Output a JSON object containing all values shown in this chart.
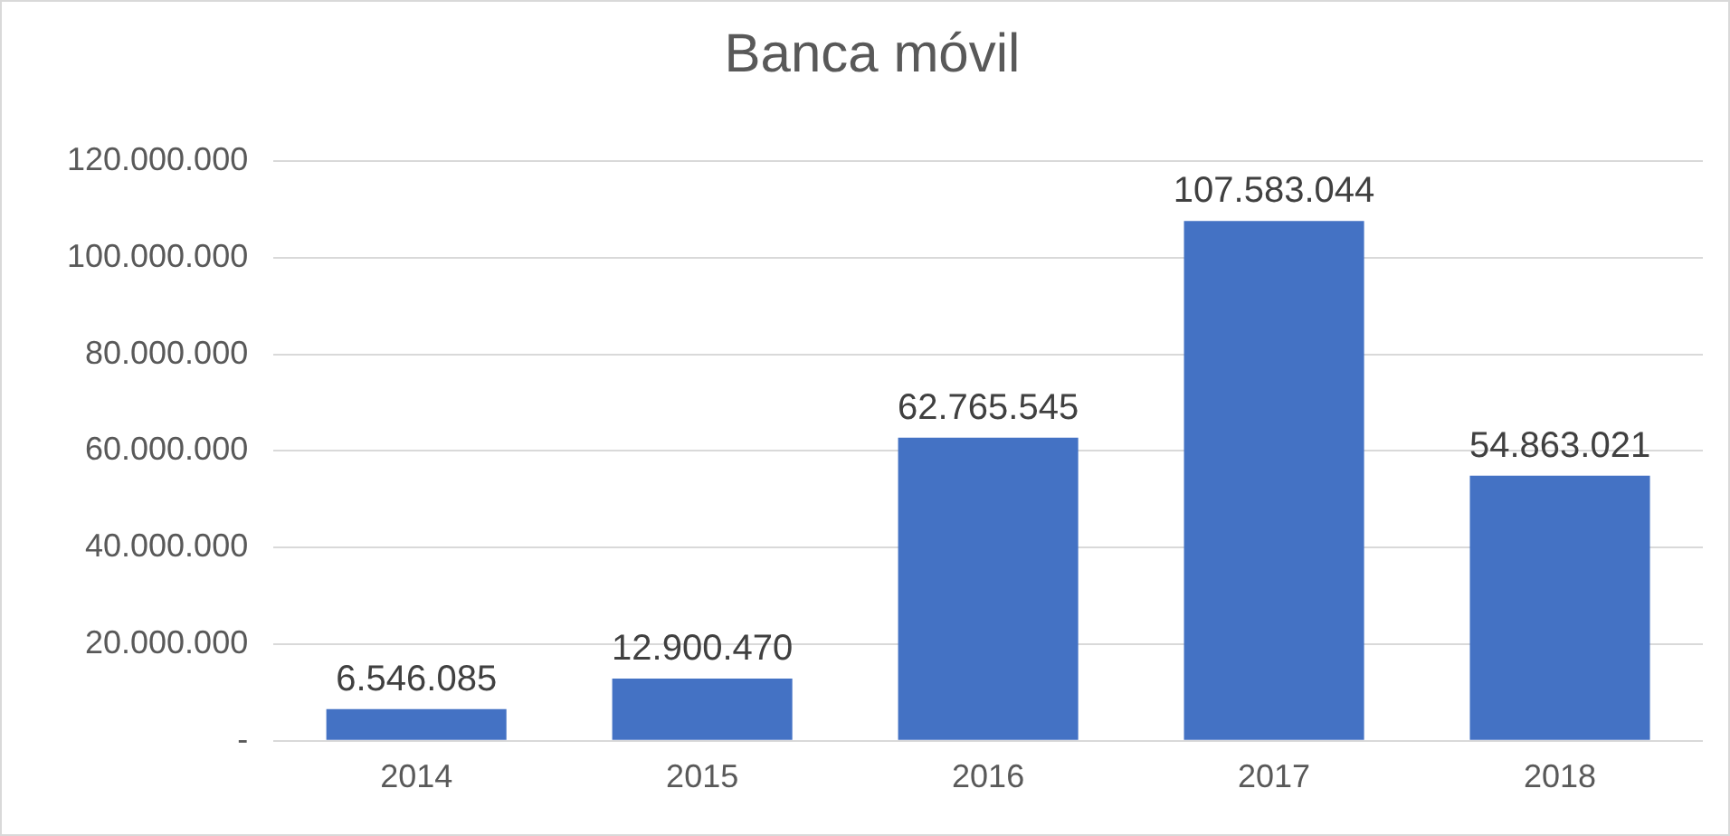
{
  "chart_data": {
    "type": "bar",
    "title": "Banca móvil",
    "categories": [
      "2014",
      "2015",
      "2016",
      "2017",
      "2018"
    ],
    "values": [
      6546085,
      12900470,
      62765545,
      107583044,
      54863021
    ],
    "value_labels": [
      "6.546.085",
      "12.900.470",
      "62.765.545",
      "107.583.044",
      "54.863.021"
    ],
    "color": "#4472c4",
    "ylim": [
      0,
      120000000
    ],
    "yticks": [
      {
        "value": 0,
        "label": "-"
      },
      {
        "value": 20000000,
        "label": "20.000.000"
      },
      {
        "value": 40000000,
        "label": "40.000.000"
      },
      {
        "value": 60000000,
        "label": "60.000.000"
      },
      {
        "value": 80000000,
        "label": "80.000.000"
      },
      {
        "value": 100000000,
        "label": "100.000.000"
      },
      {
        "value": 120000000,
        "label": "120.000.000"
      }
    ],
    "grid": "y",
    "legend": false
  }
}
